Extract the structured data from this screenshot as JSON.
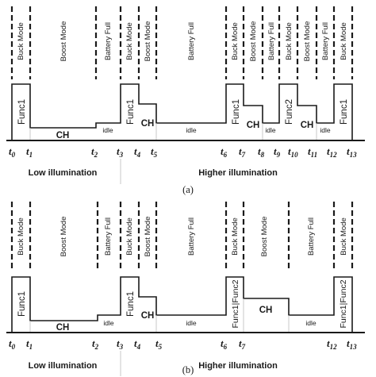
{
  "panels": [
    {
      "caption": "(a)",
      "low_label": "Low illumination",
      "high_label": "Higher illumination",
      "ticks": [
        {
          "main": "t",
          "sub": "0"
        },
        {
          "main": "t",
          "sub": "1"
        },
        {
          "main": "t",
          "sub": "2"
        },
        {
          "main": "t",
          "sub": "3"
        },
        {
          "main": "t",
          "sub": "4"
        },
        {
          "main": "t",
          "sub": "5"
        },
        {
          "main": "t",
          "sub": "6"
        },
        {
          "main": "t",
          "sub": "7"
        },
        {
          "main": "t",
          "sub": "8"
        },
        {
          "main": "t",
          "sub": "9"
        },
        {
          "main": "t",
          "sub": "10"
        },
        {
          "main": "t",
          "sub": "11"
        },
        {
          "main": "t",
          "sub": "12"
        },
        {
          "main": "t",
          "sub": "13"
        }
      ],
      "modes": [
        "Buck Mode",
        "Boost Mode",
        "Battery Full",
        "Buck Mode",
        "Boost Mode",
        "Battery Full",
        "Buck Mode",
        "Boost Mode",
        "Battery Full",
        "Buck Mode",
        "Boost Mode",
        "Battery Full",
        "Buck Mode"
      ],
      "blocks": [
        "Func1",
        "CH",
        "idle",
        "Func1",
        "CH",
        "idle",
        "Func1",
        "CH",
        "idle",
        "Func2",
        "CH",
        "idle",
        "Func1"
      ]
    },
    {
      "caption": "(b)",
      "low_label": "Low illumination",
      "high_label": "Higher illumination",
      "ticks": [
        {
          "main": "t",
          "sub": "0"
        },
        {
          "main": "t",
          "sub": "1"
        },
        {
          "main": "t",
          "sub": "2"
        },
        {
          "main": "t",
          "sub": "3"
        },
        {
          "main": "t",
          "sub": "4"
        },
        {
          "main": "t",
          "sub": "5"
        },
        {
          "main": "t",
          "sub": "6"
        },
        {
          "main": "t",
          "sub": "7"
        },
        {
          "main": "t",
          "sub": "12"
        },
        {
          "main": "t",
          "sub": "13"
        }
      ],
      "modes": [
        "Buck Mode",
        "Boost Mode",
        "Battery Full",
        "Buck Mode",
        "Boost Mode",
        "Battery Full",
        "Buck Mode",
        "Boost Mode",
        "Battery Full",
        "Buck Mode"
      ],
      "blocks": [
        "Func1",
        "CH",
        "idle",
        "Func1",
        "CH",
        "idle",
        "Func1|Func2",
        "CH",
        "idle",
        "Func1|Func2"
      ]
    }
  ]
}
